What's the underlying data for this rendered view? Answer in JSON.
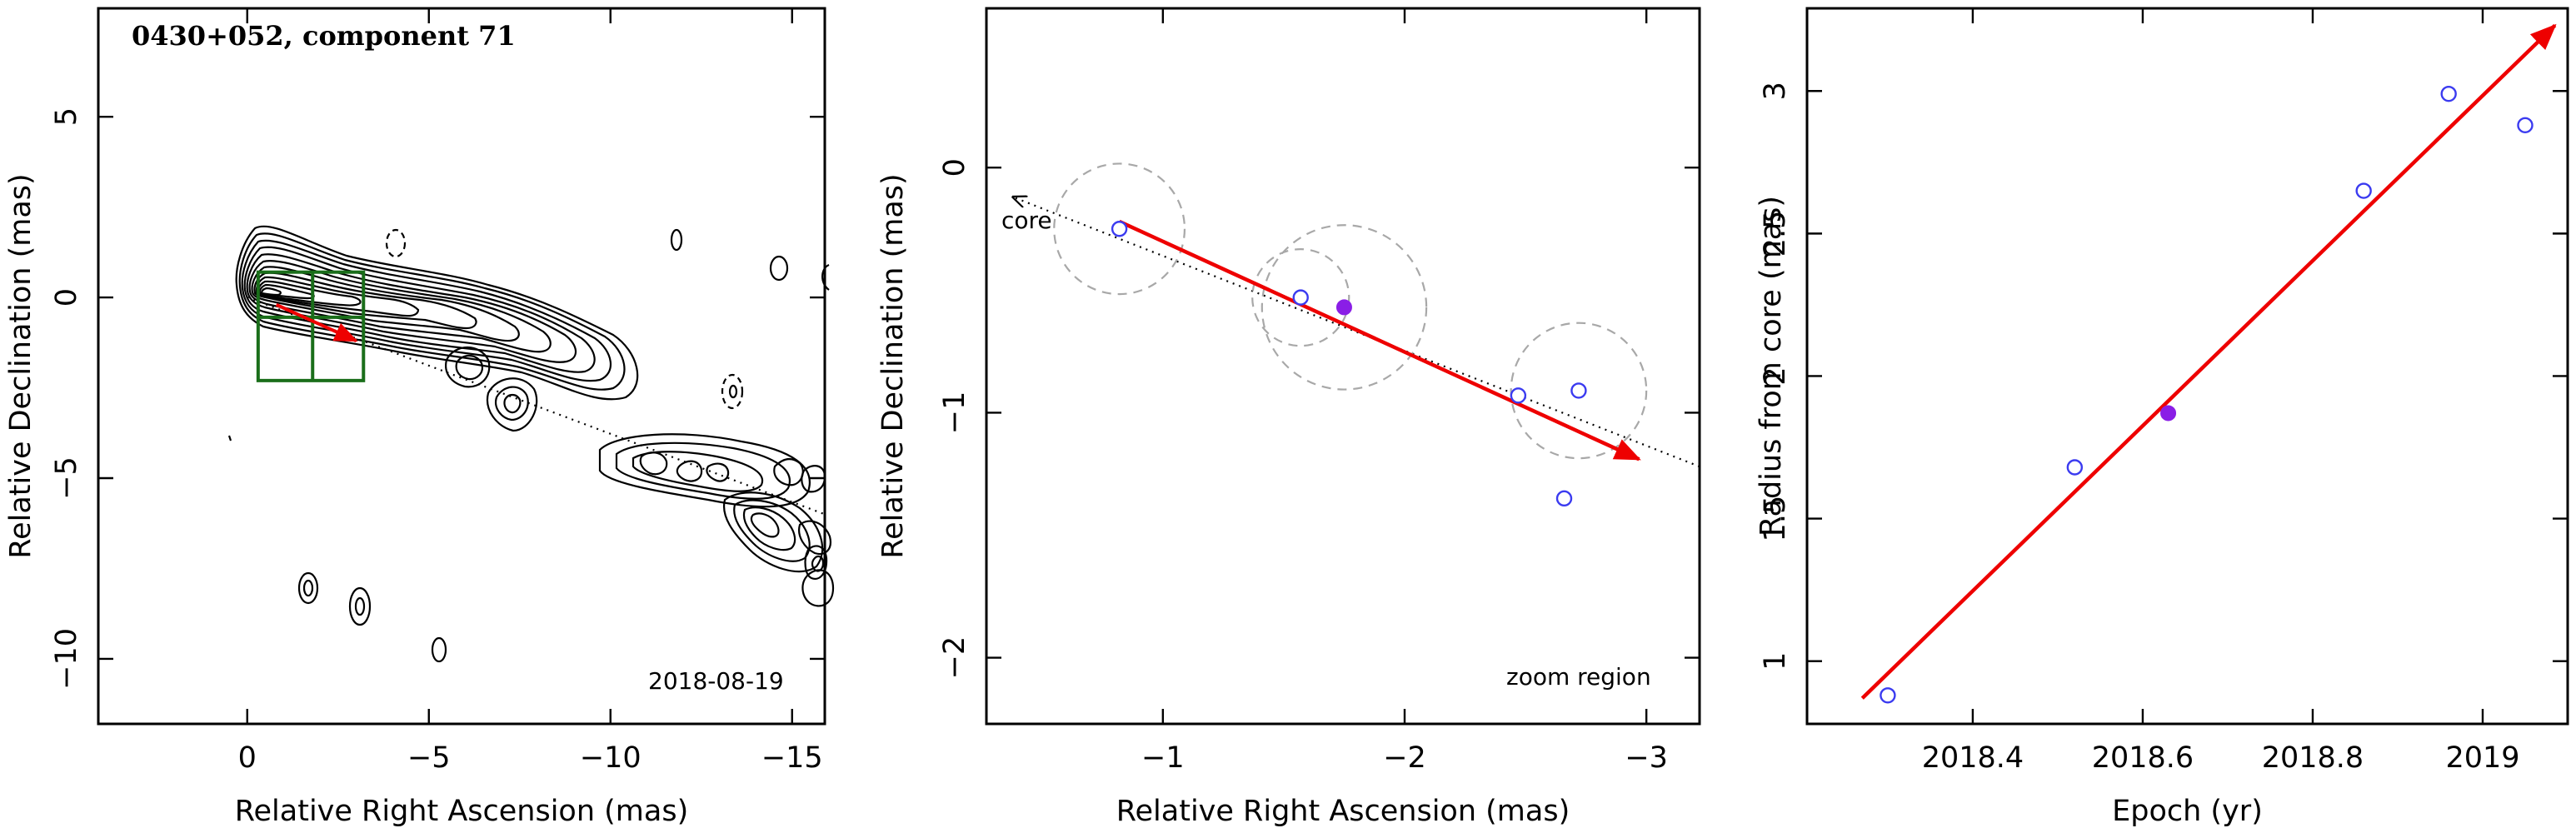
{
  "colors": {
    "axes": "#000000",
    "motion_arrow": "#ee0000",
    "open_points": "#3b3bf0",
    "current_point": "#8a1ee6",
    "error_circles": "#a8a8a8",
    "zoom_box": "#1a6e1a"
  },
  "chart_data": [
    {
      "type": "contour",
      "title": "0430+052, component 71",
      "date_label": "2018-08-19",
      "xlabel": "Relative Right Ascension (mas)",
      "ylabel": "Relative Declination (mas)",
      "xlim": [
        4.1,
        -15.9
      ],
      "ylim": [
        -11.8,
        8.0
      ],
      "xticks": [
        {
          "value": 0,
          "label": "0"
        },
        {
          "value": -5,
          "label": "−5"
        },
        {
          "value": -10,
          "label": "−10"
        },
        {
          "value": -15,
          "label": "−15"
        }
      ],
      "yticks": [
        {
          "value": 5,
          "label": "5"
        },
        {
          "value": 0,
          "label": "0"
        },
        {
          "value": -5,
          "label": "−5"
        },
        {
          "value": -10,
          "label": "−10"
        }
      ],
      "core_position": [
        0,
        0
      ],
      "jet_axis_through": [
        [
          0,
          0
        ],
        [
          -15.9,
          -6.0
        ]
      ],
      "component_position": [
        -1.8,
        -0.55
      ],
      "motion_arrow": {
        "from": [
          -0.8,
          -0.2
        ],
        "to": [
          -3.0,
          -1.2
        ]
      },
      "zoom_box": {
        "ra_range": [
          -0.3,
          -3.2
        ],
        "dec_range": [
          -2.3,
          0.7
        ]
      }
    },
    {
      "type": "scatter",
      "annotation": "zoom region",
      "core_label": "core",
      "xlabel": "Relative Right Ascension (mas)",
      "ylabel": "Relative Declination (mas)",
      "xlim": [
        -0.27,
        -3.22
      ],
      "ylim": [
        -2.27,
        0.65
      ],
      "xticks": [
        {
          "value": -1,
          "label": "−1"
        },
        {
          "value": -2,
          "label": "−2"
        },
        {
          "value": -3,
          "label": "−3"
        }
      ],
      "yticks": [
        {
          "value": 0,
          "label": "0"
        },
        {
          "value": -1,
          "label": "−1"
        },
        {
          "value": -2,
          "label": "−2"
        }
      ],
      "points": [
        {
          "ra": -0.82,
          "dec": -0.25,
          "err_radius": 0.27,
          "current": false
        },
        {
          "ra": -1.57,
          "dec": -0.53,
          "err_radius": 0.2,
          "current": false
        },
        {
          "ra": -1.75,
          "dec": -0.57,
          "err_radius": 0.34,
          "current": true
        },
        {
          "ra": -2.47,
          "dec": -0.93,
          "err_radius": 0.0,
          "current": false
        },
        {
          "ra": -2.72,
          "dec": -0.91,
          "err_radius": 0.28,
          "current": false
        },
        {
          "ra": -2.66,
          "dec": -1.35,
          "err_radius": 0.0,
          "current": false
        }
      ],
      "motion_arrow": {
        "from": [
          -0.82,
          -0.22
        ],
        "to": [
          -2.97,
          -1.19
        ]
      },
      "jet_axis": {
        "from": [
          -0.38,
          -0.12
        ],
        "to": [
          -3.22,
          -1.22
        ]
      }
    },
    {
      "type": "scatter",
      "xlabel": "Epoch (yr)",
      "ylabel": "Radius from core (mas)",
      "xlim": [
        2018.205,
        2019.1
      ],
      "ylim": [
        0.78,
        3.29
      ],
      "xticks": [
        {
          "value": 2018.4,
          "label": "2018.4"
        },
        {
          "value": 2018.6,
          "label": "2018.6"
        },
        {
          "value": 2018.8,
          "label": "2018.8"
        },
        {
          "value": 2019.0,
          "label": "2019"
        }
      ],
      "yticks": [
        {
          "value": 1,
          "label": "1"
        },
        {
          "value": 1.5,
          "label": "1.5"
        },
        {
          "value": 2,
          "label": "2"
        },
        {
          "value": 2.5,
          "label": "2.5"
        },
        {
          "value": 3,
          "label": "3"
        }
      ],
      "points": [
        {
          "x": 2018.3,
          "y": 0.88,
          "current": false
        },
        {
          "x": 2018.52,
          "y": 1.68,
          "current": false
        },
        {
          "x": 2018.63,
          "y": 1.87,
          "current": true
        },
        {
          "x": 2018.86,
          "y": 2.65,
          "current": false
        },
        {
          "x": 2018.96,
          "y": 2.99,
          "current": false
        },
        {
          "x": 2019.05,
          "y": 2.88,
          "current": false
        }
      ],
      "fit_line": {
        "from": [
          2018.27,
          0.87
        ],
        "to": [
          2019.085,
          3.23
        ]
      }
    }
  ]
}
